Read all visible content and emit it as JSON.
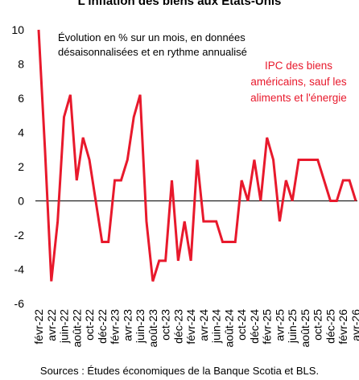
{
  "chart_data": {
    "type": "line",
    "title": "L'inflation des biens aux États-Unis",
    "annotation": "Évolution en % sur un mois, en données désaisonnalisées et en rythme annualisé",
    "source": "Sources : Études économiques de la Banque Scotia et BLS.",
    "categories": [
      "févr-22",
      null,
      "avr-22",
      null,
      "juin-22",
      null,
      "août-22",
      null,
      "oct-22",
      null,
      "déc-22",
      null,
      "févr-23",
      null,
      "avr-23",
      null,
      "juin-23",
      null,
      "août-23",
      null,
      "oct-23",
      null,
      "déc-23",
      null,
      "févr-24",
      null,
      "avr-24",
      null,
      "juin-24",
      null,
      "août-24",
      null,
      "oct-24",
      null,
      "déc-24",
      null,
      "févr-25",
      null,
      "avr-25",
      null,
      "juin-25",
      null,
      "août-25",
      null,
      "oct-25",
      null,
      "déc-25",
      null,
      "févr-26",
      null,
      "avr-26"
    ],
    "series": [
      {
        "name": "IPC des biens américains, sauf les aliments et l'énergie",
        "color": "#e8192c",
        "values": [
          10,
          3,
          -4.7,
          -1.2,
          4.9,
          6.2,
          1.2,
          3.7,
          2.4,
          0,
          -2.4,
          -2.4,
          1.2,
          1.2,
          2.4,
          4.9,
          6.2,
          -1.2,
          -4.7,
          -3.5,
          -3.5,
          1.2,
          -3.5,
          -1.2,
          -3.5,
          2.4,
          -1.2,
          -1.2,
          -1.2,
          -2.4,
          -2.4,
          -2.4,
          1.2,
          0,
          2.4,
          0,
          3.7,
          2.4,
          -1.2,
          1.2,
          0,
          2.4,
          2.4,
          2.4,
          2.4,
          1.2,
          0,
          0,
          1.2,
          1.2,
          0
        ]
      }
    ],
    "ylim": [
      -6,
      10
    ],
    "yticks": [
      -6,
      -4,
      -2,
      0,
      2,
      4,
      6,
      8,
      10
    ]
  }
}
